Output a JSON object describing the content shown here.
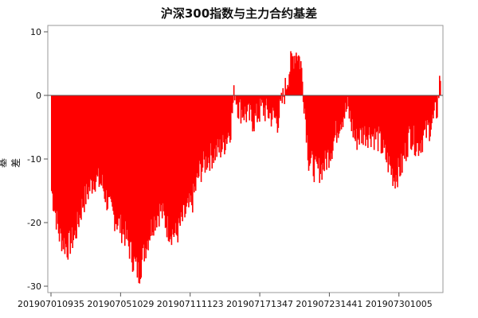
{
  "chart_data": {
    "type": "bar",
    "title": "沪深300指数与主力合约基差",
    "xlabel": "",
    "ylabel": "基差",
    "ylim": [
      -31,
      11
    ],
    "yticks": [
      10,
      0,
      -10,
      -20,
      -30
    ],
    "xtick_labels": [
      "201907010935",
      "201907051029",
      "201907111123",
      "201907171347",
      "201907231441",
      "201907301005"
    ],
    "series": [
      {
        "color": "#ff0000",
        "approx_profile": [
          [
            0,
            -15
          ],
          [
            10,
            -22
          ],
          [
            20,
            -24
          ],
          [
            30,
            -22
          ],
          [
            40,
            -17
          ],
          [
            55,
            -13
          ],
          [
            65,
            -14
          ],
          [
            75,
            -18
          ],
          [
            85,
            -20
          ],
          [
            95,
            -22
          ],
          [
            105,
            -26
          ],
          [
            112,
            -28
          ],
          [
            120,
            -24
          ],
          [
            130,
            -20
          ],
          [
            140,
            -18
          ],
          [
            150,
            -21
          ],
          [
            160,
            -22
          ],
          [
            170,
            -19
          ],
          [
            180,
            -17
          ],
          [
            190,
            -12
          ],
          [
            200,
            -10
          ],
          [
            210,
            -9
          ],
          [
            220,
            -8
          ],
          [
            230,
            -5
          ],
          [
            235,
            1
          ],
          [
            240,
            -2
          ],
          [
            250,
            -3
          ],
          [
            260,
            -4
          ],
          [
            270,
            -2
          ],
          [
            280,
            -3
          ],
          [
            290,
            -4
          ],
          [
            300,
            1
          ],
          [
            305,
            4
          ],
          [
            310,
            6
          ],
          [
            315,
            7
          ],
          [
            320,
            5
          ],
          [
            325,
            -2
          ],
          [
            330,
            -10
          ],
          [
            340,
            -12
          ],
          [
            350,
            -11
          ],
          [
            360,
            -8
          ],
          [
            370,
            -4
          ],
          [
            380,
            -2
          ],
          [
            390,
            -7
          ],
          [
            400,
            -6
          ],
          [
            410,
            -6
          ],
          [
            420,
            -7
          ],
          [
            430,
            -10
          ],
          [
            440,
            -13
          ],
          [
            450,
            -11
          ],
          [
            460,
            -6
          ],
          [
            470,
            -8
          ],
          [
            480,
            -6
          ],
          [
            490,
            -4
          ],
          [
            495,
            -2
          ],
          [
            499,
            3
          ]
        ]
      }
    ]
  }
}
